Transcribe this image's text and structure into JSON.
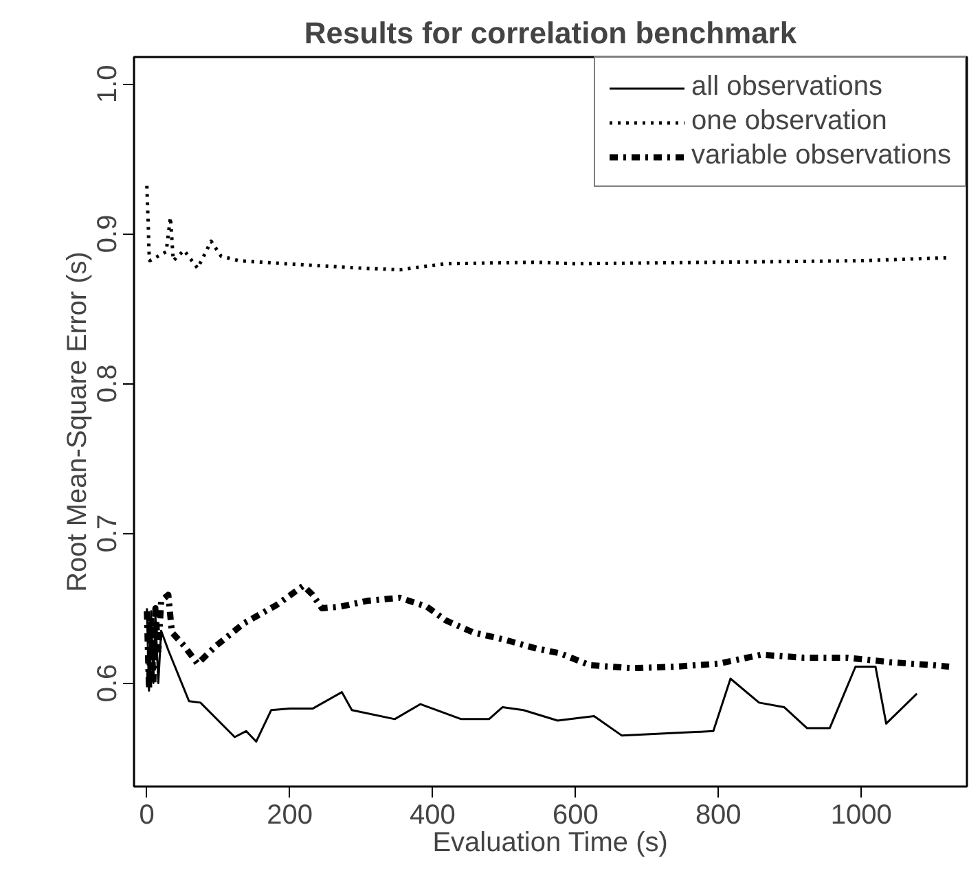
{
  "chart_data": {
    "type": "line",
    "title": "Results for correlation benchmark",
    "xlabel": "Evaluation Time (s)",
    "ylabel": "Root Mean-Square Error (s)",
    "xlim": [
      -18,
      1148
    ],
    "ylim": [
      0.531,
      1.018
    ],
    "xticks": [
      0,
      200,
      400,
      600,
      800,
      1000
    ],
    "yticks": [
      0.6,
      0.7,
      0.8,
      0.9,
      {
        "value": 1.0,
        "label": "1.0"
      }
    ],
    "grid": false,
    "legend": "top right",
    "marker": "none",
    "series": [
      {
        "name": "all observations",
        "color": "#000000",
        "line_style": "solid",
        "x": [
          0,
          3,
          6,
          9,
          12,
          16,
          20,
          30,
          59,
          75,
          123,
          139,
          153,
          174,
          200,
          232,
          273,
          287,
          347,
          383,
          440,
          479,
          498,
          527,
          575,
          626,
          665,
          793,
          817,
          857,
          892,
          924,
          956,
          992,
          1020,
          1035,
          1078
        ],
        "values": [
          0.65,
          0.595,
          0.648,
          0.6,
          0.645,
          0.6,
          0.635,
          0.622,
          0.588,
          0.587,
          0.564,
          0.568,
          0.561,
          0.582,
          0.583,
          0.583,
          0.594,
          0.582,
          0.576,
          0.586,
          0.576,
          0.576,
          0.584,
          0.582,
          0.575,
          0.578,
          0.565,
          0.568,
          0.603,
          0.587,
          0.584,
          0.57,
          0.57,
          0.611,
          0.611,
          0.573,
          0.593
        ]
      },
      {
        "name": "one observation",
        "color": "#000000",
        "line_style": "dotted",
        "x": [
          0,
          1,
          2,
          3,
          4,
          27,
          33,
          37,
          52,
          71,
          90,
          104,
          129,
          194,
          302,
          354,
          418,
          546,
          600,
          800,
          1000,
          1121
        ],
        "values": [
          0.932,
          0.918,
          0.905,
          0.888,
          0.882,
          0.888,
          0.911,
          0.882,
          0.889,
          0.877,
          0.895,
          0.885,
          0.882,
          0.88,
          0.877,
          0.876,
          0.88,
          0.881,
          0.88,
          0.881,
          0.882,
          0.884
        ]
      },
      {
        "name": "variable observations",
        "color": "#000000",
        "line_style": "dashdot",
        "x": [
          0,
          3,
          6,
          9,
          12,
          16,
          20,
          30,
          35,
          52,
          71,
          97,
          136,
          181,
          219,
          232,
          245,
          270,
          309,
          354,
          392,
          418,
          456,
          501,
          546,
          578,
          620,
          680,
          740,
          800,
          860,
          920,
          980,
          1040,
          1100,
          1123
        ],
        "values": [
          0.648,
          0.596,
          0.645,
          0.6,
          0.65,
          0.62,
          0.655,
          0.659,
          0.634,
          0.625,
          0.613,
          0.625,
          0.64,
          0.652,
          0.665,
          0.659,
          0.65,
          0.651,
          0.655,
          0.657,
          0.651,
          0.642,
          0.634,
          0.629,
          0.623,
          0.62,
          0.612,
          0.61,
          0.611,
          0.613,
          0.619,
          0.617,
          0.617,
          0.614,
          0.612,
          0.611
        ]
      }
    ]
  }
}
